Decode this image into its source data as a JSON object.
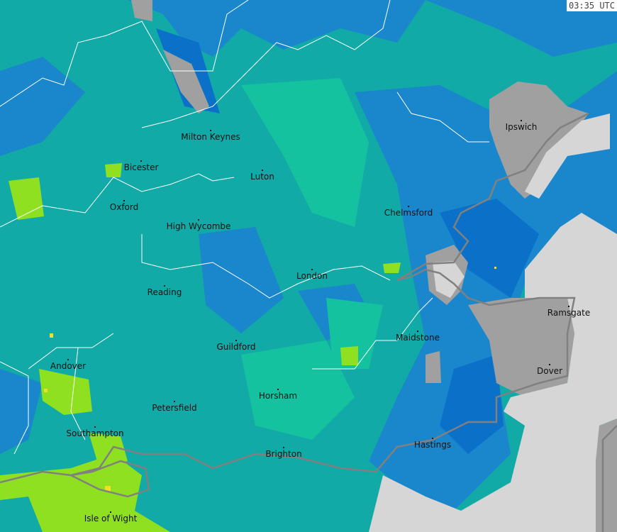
{
  "timestamp": "03:35 UTC",
  "colors": {
    "light_rain": "#12aaa6",
    "moderate_light": "#14c2a0",
    "blue": "#1a86cc",
    "dark_blue": "#0a70c8",
    "yellow_green": "#8ee020",
    "yellow": "#f0e020",
    "no_data_land": "#a0a0a0",
    "sea": "#d6d6d6",
    "coastline": "#808080",
    "border": "#ffffff"
  },
  "cities": [
    {
      "name": "Milton Keynes"
    },
    {
      "name": "Ipswich"
    },
    {
      "name": "Bicester"
    },
    {
      "name": "Luton"
    },
    {
      "name": "Oxford"
    },
    {
      "name": "Chelmsford"
    },
    {
      "name": "High Wycombe"
    },
    {
      "name": "London"
    },
    {
      "name": "Ramsgate"
    },
    {
      "name": "Reading"
    },
    {
      "name": "Maidstone"
    },
    {
      "name": "Guildford"
    },
    {
      "name": "Andover"
    },
    {
      "name": "Dover"
    },
    {
      "name": "Horsham"
    },
    {
      "name": "Petersfield"
    },
    {
      "name": "Southampton"
    },
    {
      "name": "Hastings"
    },
    {
      "name": "Brighton"
    },
    {
      "name": "Isle of Wight"
    }
  ]
}
